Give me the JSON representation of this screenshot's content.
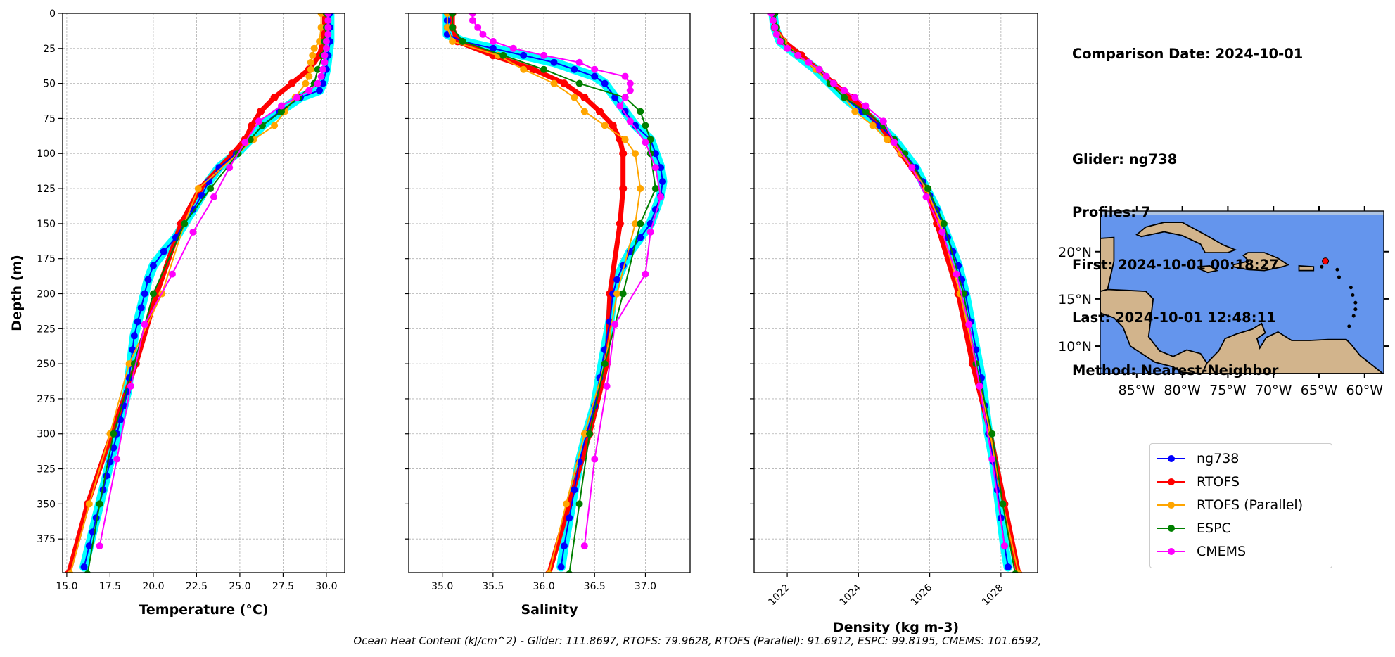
{
  "info": {
    "lines": [
      "Comparison Date: 2024-10-01",
      "",
      "Glider: ng738",
      "Profiles: 7",
      "First: 2024-10-01 00:18:27",
      "Last: 2024-10-01 12:48:11",
      "Method: Nearest-Neighbor"
    ]
  },
  "footer": "Ocean Heat Content (kJ/cm^2) - Glider: 111.8697,  RTOFS: 79.9628,  RTOFS (Parallel): 91.6912,  ESPC: 99.8195,  CMEMS: 101.6592,",
  "legend": [
    {
      "label": "ng738",
      "color": "#0000ff"
    },
    {
      "label": "RTOFS",
      "color": "#ff0000"
    },
    {
      "label": "RTOFS (Parallel)",
      "color": "#ffa500"
    },
    {
      "label": "ESPC",
      "color": "#008000"
    },
    {
      "label": "CMEMS",
      "color": "#ff00ff"
    }
  ],
  "map": {
    "lat_ticks": [
      "20°N",
      "15°N",
      "10°N"
    ],
    "lon_ticks": [
      "85°W",
      "80°W",
      "75°W",
      "70°W",
      "65°W",
      "60°W"
    ],
    "lon_range": [
      -89,
      -57.9
    ],
    "lat_range": [
      7.1,
      24.3
    ],
    "glider_position": {
      "lon": -64.3,
      "lat": 19.0,
      "color": "#ff0000"
    },
    "colors": {
      "ocean": "#6495ed",
      "shelf": "#aec4e3",
      "land": "#d2b48c"
    }
  },
  "chart_data": [
    {
      "type": "line",
      "xlabel": "Temperature (°C)",
      "ylabel": "Depth (m)",
      "xlim": [
        14.76,
        31.06
      ],
      "ylim": [
        399,
        0
      ],
      "xticks": [
        "15.0",
        "17.5",
        "20.0",
        "22.5",
        "25.0",
        "27.5",
        "30.0"
      ],
      "yticks": [
        "0",
        "25",
        "50",
        "75",
        "100",
        "125",
        "150",
        "175",
        "200",
        "225",
        "250",
        "275",
        "300",
        "325",
        "350",
        "375"
      ],
      "grid": true,
      "series": [
        {
          "name": "ng738",
          "depth": [
            0,
            10,
            20,
            30,
            40,
            50,
            55,
            60,
            70,
            80,
            90,
            100,
            110,
            120,
            130,
            140,
            150,
            160,
            170,
            180,
            190,
            200,
            210,
            220,
            230,
            240,
            250,
            260,
            270,
            280,
            290,
            300,
            310,
            320,
            330,
            340,
            350,
            360,
            370,
            380,
            395
          ],
          "values": [
            30.2,
            30.2,
            30.2,
            30.1,
            30.0,
            29.8,
            29.6,
            28.5,
            27.3,
            26.3,
            25.6,
            24.8,
            23.8,
            23.2,
            22.8,
            22.3,
            21.8,
            21.3,
            20.6,
            20.0,
            19.7,
            19.5,
            19.3,
            19.1,
            18.9,
            18.8,
            18.7,
            18.6,
            18.5,
            18.3,
            18.1,
            17.9,
            17.7,
            17.5,
            17.3,
            17.1,
            16.9,
            16.7,
            16.5,
            16.3,
            16.0
          ]
        },
        {
          "name": "RTOFS",
          "depth": [
            0,
            10,
            20,
            30,
            40,
            50,
            60,
            70,
            80,
            90,
            100,
            125,
            150,
            200,
            250,
            300,
            350,
            400
          ],
          "values": [
            29.9,
            29.9,
            29.8,
            29.6,
            29.0,
            28.0,
            27.0,
            26.2,
            25.7,
            25.3,
            24.6,
            22.7,
            21.6,
            20.2,
            19.0,
            17.6,
            16.2,
            15.1
          ]
        },
        {
          "name": "RTOFS (Parallel)",
          "depth": [
            0,
            10,
            20,
            25,
            30,
            35,
            40,
            45,
            50,
            60,
            70,
            80,
            90,
            100,
            125,
            150,
            200,
            250,
            300,
            350,
            400
          ],
          "values": [
            29.7,
            29.7,
            29.6,
            29.3,
            29.2,
            29.1,
            29.1,
            29.0,
            28.8,
            28.2,
            27.6,
            27.0,
            25.8,
            24.9,
            22.6,
            21.8,
            20.5,
            18.6,
            17.5,
            16.3,
            15.2
          ]
        },
        {
          "name": "ESPC",
          "depth": [
            0,
            10,
            20,
            30,
            40,
            50,
            60,
            70,
            80,
            90,
            100,
            125,
            150,
            200,
            250,
            300,
            350,
            400
          ],
          "values": [
            30.0,
            30.0,
            29.9,
            29.8,
            29.5,
            29.3,
            28.4,
            27.4,
            26.3,
            25.6,
            24.9,
            23.3,
            21.8,
            20.0,
            18.9,
            17.7,
            16.9,
            16.2
          ]
        },
        {
          "name": "CMEMS",
          "depth": [
            0,
            5,
            10,
            15,
            20,
            25,
            30,
            35,
            40,
            45,
            50,
            55,
            60,
            66,
            77,
            92,
            110,
            131,
            156,
            186,
            222,
            266,
            318,
            380
          ],
          "values": [
            30.1,
            30.1,
            30.1,
            30.1,
            30.0,
            30.0,
            29.9,
            29.9,
            29.8,
            29.7,
            29.5,
            29.0,
            28.3,
            27.4,
            26.1,
            25.3,
            24.4,
            23.5,
            22.3,
            21.1,
            19.5,
            18.7,
            17.9,
            16.9
          ]
        }
      ]
    },
    {
      "type": "line",
      "xlabel": "Salinity",
      "ylabel": "",
      "xlim": [
        34.67,
        37.44
      ],
      "ylim": [
        399,
        0
      ],
      "xticks": [
        "35.0",
        "35.5",
        "36.0",
        "36.5",
        "37.0"
      ],
      "grid": true,
      "series": [
        {
          "name": "ng738",
          "depth": [
            0,
            5,
            10,
            15,
            20,
            25,
            30,
            35,
            40,
            45,
            50,
            60,
            70,
            80,
            90,
            100,
            110,
            120,
            130,
            140,
            150,
            160,
            170,
            180,
            190,
            200,
            220,
            240,
            260,
            280,
            300,
            320,
            340,
            360,
            380,
            395
          ],
          "values": [
            35.05,
            35.05,
            35.05,
            35.05,
            35.2,
            35.5,
            35.8,
            36.1,
            36.3,
            36.5,
            36.6,
            36.7,
            36.8,
            36.9,
            37.05,
            37.1,
            37.15,
            37.17,
            37.15,
            37.1,
            37.05,
            36.95,
            36.85,
            36.78,
            36.72,
            36.68,
            36.65,
            36.6,
            36.55,
            36.5,
            36.42,
            36.35,
            36.3,
            36.25,
            36.2,
            36.17
          ]
        },
        {
          "name": "RTOFS",
          "depth": [
            0,
            10,
            20,
            30,
            40,
            50,
            60,
            70,
            80,
            90,
            100,
            125,
            150,
            200,
            250,
            300,
            350,
            400
          ],
          "values": [
            35.1,
            35.1,
            35.15,
            35.5,
            35.9,
            36.2,
            36.4,
            36.55,
            36.68,
            36.75,
            36.78,
            36.78,
            36.75,
            36.65,
            36.62,
            36.45,
            36.25,
            36.05
          ]
        },
        {
          "name": "RTOFS (Parallel)",
          "depth": [
            0,
            10,
            20,
            30,
            40,
            50,
            60,
            70,
            80,
            90,
            100,
            125,
            150,
            200,
            250,
            300,
            350,
            400
          ],
          "values": [
            35.05,
            35.05,
            35.1,
            35.55,
            35.8,
            36.1,
            36.3,
            36.4,
            36.6,
            36.8,
            36.9,
            36.95,
            36.9,
            36.72,
            36.6,
            36.4,
            36.22,
            36.05
          ]
        },
        {
          "name": "ESPC",
          "depth": [
            0,
            10,
            20,
            30,
            40,
            50,
            60,
            70,
            80,
            90,
            100,
            125,
            150,
            200,
            250,
            300,
            350,
            400
          ],
          "values": [
            35.1,
            35.1,
            35.2,
            35.6,
            36.0,
            36.35,
            36.8,
            36.95,
            37.0,
            37.05,
            37.05,
            37.1,
            36.95,
            36.78,
            36.6,
            36.45,
            36.35,
            36.25
          ]
        },
        {
          "name": "CMEMS",
          "depth": [
            0,
            5,
            10,
            15,
            20,
            25,
            30,
            35,
            40,
            45,
            50,
            55,
            60,
            66,
            77,
            92,
            110,
            131,
            156,
            186,
            222,
            266,
            318,
            380
          ],
          "values": [
            35.3,
            35.3,
            35.35,
            35.4,
            35.5,
            35.7,
            36.0,
            36.35,
            36.5,
            36.8,
            36.85,
            36.85,
            36.8,
            36.75,
            36.85,
            37.0,
            37.1,
            37.15,
            37.05,
            37.0,
            36.7,
            36.62,
            36.5,
            36.4
          ]
        }
      ]
    },
    {
      "type": "line",
      "xlabel": "Density (kg m-3)",
      "ylabel": "",
      "xlim": [
        1021.07,
        1029.03
      ],
      "ylim": [
        399,
        0
      ],
      "xticks": [
        "1022",
        "1024",
        "1026",
        "1028"
      ],
      "grid": true,
      "series": [
        {
          "name": "ng738",
          "depth": [
            0,
            10,
            20,
            30,
            40,
            50,
            60,
            70,
            80,
            90,
            100,
            110,
            120,
            130,
            140,
            150,
            160,
            170,
            180,
            190,
            200,
            220,
            240,
            260,
            280,
            300,
            320,
            340,
            360,
            380,
            395
          ],
          "values": [
            1021.6,
            1021.65,
            1021.8,
            1022.3,
            1022.8,
            1023.2,
            1023.6,
            1024.1,
            1024.6,
            1025.0,
            1025.3,
            1025.6,
            1025.8,
            1026.0,
            1026.2,
            1026.35,
            1026.5,
            1026.65,
            1026.8,
            1026.9,
            1027.0,
            1027.15,
            1027.3,
            1027.45,
            1027.55,
            1027.65,
            1027.8,
            1027.9,
            1028.0,
            1028.1,
            1028.2
          ]
        },
        {
          "name": "RTOFS",
          "depth": [
            0,
            10,
            20,
            30,
            50,
            60,
            70,
            80,
            90,
            100,
            125,
            150,
            200,
            250,
            300,
            350,
            400
          ],
          "values": [
            1021.6,
            1021.65,
            1021.9,
            1022.4,
            1023.3,
            1023.8,
            1024.2,
            1024.6,
            1024.9,
            1025.2,
            1025.9,
            1026.2,
            1026.8,
            1027.2,
            1027.7,
            1028.1,
            1028.5
          ]
        },
        {
          "name": "RTOFS (Parallel)",
          "depth": [
            0,
            10,
            20,
            30,
            40,
            50,
            60,
            70,
            80,
            90,
            100,
            125,
            150,
            200,
            250,
            300,
            350,
            400
          ],
          "values": [
            1021.65,
            1021.7,
            1021.9,
            1022.3,
            1022.8,
            1023.2,
            1023.6,
            1023.9,
            1024.4,
            1024.8,
            1025.2,
            1025.9,
            1026.3,
            1026.85,
            1027.3,
            1027.7,
            1028.05,
            1028.5
          ]
        },
        {
          "name": "ESPC",
          "depth": [
            0,
            10,
            20,
            30,
            40,
            50,
            60,
            70,
            80,
            90,
            100,
            125,
            150,
            200,
            250,
            300,
            350,
            400
          ],
          "values": [
            1021.65,
            1021.7,
            1021.85,
            1022.3,
            1022.9,
            1023.2,
            1023.6,
            1024.2,
            1024.7,
            1025.0,
            1025.3,
            1025.95,
            1026.4,
            1026.95,
            1027.3,
            1027.75,
            1028.05,
            1028.4
          ]
        },
        {
          "name": "CMEMS",
          "depth": [
            0,
            5,
            10,
            15,
            20,
            25,
            30,
            35,
            40,
            45,
            50,
            55,
            60,
            66,
            77,
            92,
            110,
            131,
            156,
            186,
            222,
            266,
            318,
            380
          ],
          "values": [
            1021.55,
            1021.6,
            1021.65,
            1021.7,
            1021.8,
            1022.0,
            1022.3,
            1022.6,
            1022.9,
            1023.1,
            1023.3,
            1023.6,
            1023.9,
            1024.2,
            1024.7,
            1025.0,
            1025.5,
            1025.9,
            1026.35,
            1026.75,
            1027.1,
            1027.4,
            1027.75,
            1028.1
          ]
        }
      ]
    }
  ]
}
